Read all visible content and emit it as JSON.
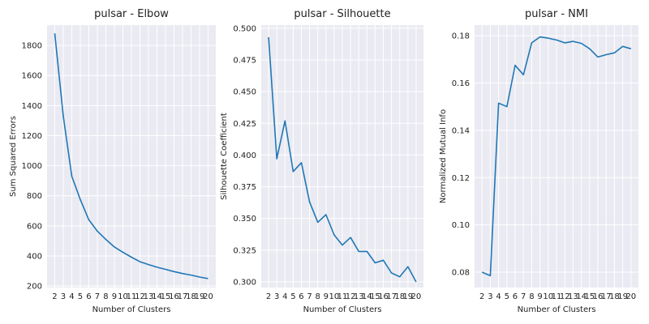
{
  "chart_data": [
    {
      "type": "line",
      "title": "pulsar - Elbow",
      "xlabel": "Number of Clusters",
      "ylabel": "Sum Squared Errors",
      "x": [
        2,
        3,
        4,
        5,
        6,
        7,
        8,
        9,
        10,
        11,
        12,
        13,
        14,
        15,
        16,
        17,
        18,
        19,
        20
      ],
      "xticks": [
        "2",
        "3",
        "4",
        "5",
        "6",
        "7",
        "8",
        "9",
        "10",
        "11",
        "12",
        "13",
        "14",
        "15",
        "16",
        "17",
        "18",
        "19",
        "20"
      ],
      "series": [
        {
          "values": [
            1880,
            1330,
            930,
            775,
            640,
            565,
            510,
            460,
            425,
            392,
            362,
            343,
            325,
            311,
            296,
            283,
            273,
            260,
            250
          ]
        }
      ],
      "xlim": [
        1.1,
        20.9
      ],
      "ylim": [
        190,
        1935
      ],
      "yticks": [
        200,
        400,
        600,
        800,
        1000,
        1200,
        1400,
        1600,
        1800
      ],
      "ytick_labels": [
        "200",
        "400",
        "600",
        "800",
        "1000",
        "1200",
        "1400",
        "1600",
        "1800"
      ],
      "grid": true
    },
    {
      "type": "line",
      "title": "pulsar - Silhouette",
      "xlabel": "Number of Clusters",
      "ylabel": "Silhouette Coefficient",
      "x": [
        2,
        3,
        4,
        5,
        6,
        7,
        8,
        9,
        10,
        11,
        12,
        13,
        14,
        15,
        16,
        17,
        18,
        19,
        20
      ],
      "xticks": [
        "2",
        "3",
        "4",
        "5",
        "6",
        "7",
        "8",
        "9",
        "10",
        "11",
        "12",
        "13",
        "14",
        "15",
        "16",
        "17",
        "18",
        "19",
        "20"
      ],
      "series": [
        {
          "values": [
            0.493,
            0.397,
            0.427,
            0.387,
            0.394,
            0.363,
            0.347,
            0.353,
            0.337,
            0.329,
            0.335,
            0.324,
            0.324,
            0.315,
            0.317,
            0.307,
            0.304,
            0.312,
            0.3
          ]
        }
      ],
      "xlim": [
        1.1,
        20.9
      ],
      "ylim": [
        0.2955,
        0.5025
      ],
      "yticks": [
        0.3,
        0.325,
        0.35,
        0.375,
        0.4,
        0.425,
        0.45,
        0.475,
        0.5
      ],
      "ytick_labels": [
        "0.300",
        "0.325",
        "0.350",
        "0.375",
        "0.400",
        "0.425",
        "0.450",
        "0.475",
        "0.500"
      ],
      "grid": true
    },
    {
      "type": "line",
      "title": "pulsar - NMI",
      "xlabel": "Number of Clusters",
      "ylabel": "Normalized Mutual Info",
      "x": [
        2,
        3,
        4,
        5,
        6,
        7,
        8,
        9,
        10,
        11,
        12,
        13,
        14,
        15,
        16,
        17,
        18,
        19,
        20
      ],
      "xticks": [
        "2",
        "3",
        "4",
        "5",
        "6",
        "7",
        "8",
        "9",
        "10",
        "11",
        "12",
        "13",
        "14",
        "15",
        "16",
        "17",
        "18",
        "19",
        "20"
      ],
      "series": [
        {
          "values": [
            0.08,
            0.0785,
            0.1515,
            0.15,
            0.1675,
            0.1635,
            0.177,
            0.1795,
            0.179,
            0.1782,
            0.177,
            0.1776,
            0.1768,
            0.1745,
            0.171,
            0.172,
            0.1728,
            0.1755,
            0.1745
          ]
        }
      ],
      "xlim": [
        1.1,
        20.9
      ],
      "ylim": [
        0.0735,
        0.1845
      ],
      "yticks": [
        0.08,
        0.1,
        0.12,
        0.14,
        0.16,
        0.18
      ],
      "ytick_labels": [
        "0.08",
        "0.10",
        "0.12",
        "0.14",
        "0.16",
        "0.18"
      ],
      "grid": true
    }
  ]
}
